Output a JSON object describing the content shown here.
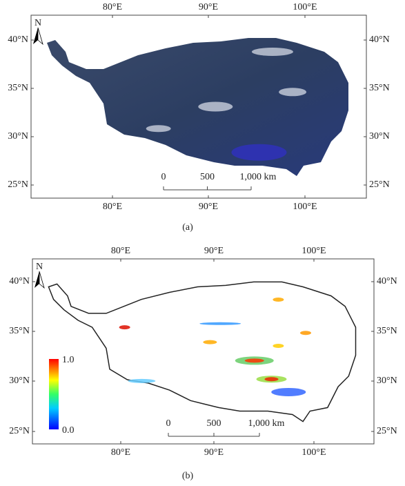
{
  "panels": [
    {
      "caption": "(a)",
      "north": "N",
      "x_labels": [
        "80°E",
        "90°E",
        "100°E"
      ],
      "y_labels": [
        "40°N",
        "35°N",
        "30°N",
        "25°N"
      ],
      "scale_labels": [
        "0",
        "500",
        "1,000 km"
      ]
    },
    {
      "caption": "(b)",
      "north": "N",
      "x_labels": [
        "80°E",
        "90°E",
        "100°E"
      ],
      "y_labels": [
        "40°N",
        "35°N",
        "30°N",
        "25°N"
      ],
      "scale_labels": [
        "0",
        "500",
        "1,000 km"
      ],
      "legend": {
        "max": "1.0",
        "min": "0.0"
      }
    }
  ]
}
